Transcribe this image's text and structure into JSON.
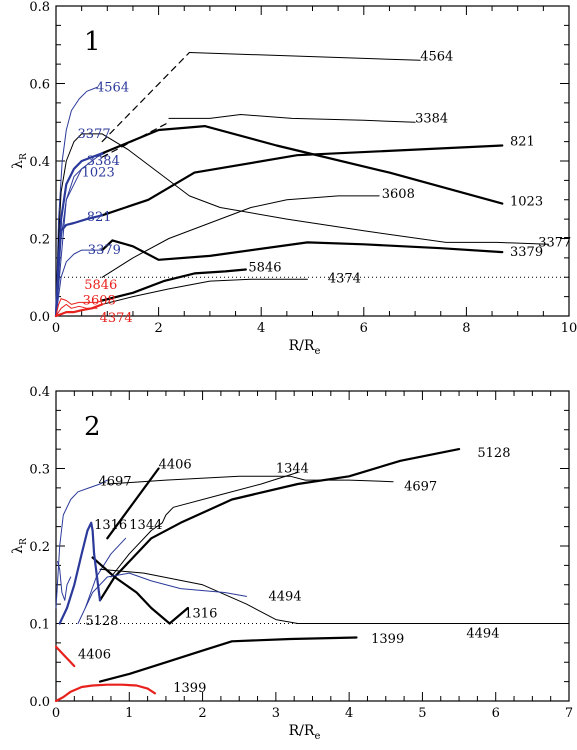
{
  "chart_data": [
    {
      "type": "line",
      "panel_label": "1",
      "xlabel": "R/R",
      "xlabel_sub": "e",
      "ylabel": "λ",
      "ylabel_sub": "R",
      "xlim": [
        0,
        10
      ],
      "ylim": [
        0,
        0.8
      ],
      "xticks": [
        0,
        2,
        4,
        6,
        8,
        10
      ],
      "xtick_labels": [
        "0",
        "2",
        "4",
        "6",
        "8",
        "10"
      ],
      "yticks": [
        0,
        0.2,
        0.4,
        0.6,
        0.8
      ],
      "ytick_labels": [
        "0.0",
        "0.2",
        "0.4",
        "0.6",
        "0.8"
      ],
      "reference_line": {
        "y": 0.1,
        "style": "dotted"
      },
      "colors": {
        "black": "#000000",
        "blue": "#2b3a9a",
        "red": "#e8211d"
      },
      "series": [
        {
          "name": "4564",
          "color": "black",
          "width": 1.2,
          "dash": "6,5",
          "x": [
            0.9,
            2.6
          ],
          "y": [
            0.45,
            0.68
          ]
        },
        {
          "name": "4564",
          "color": "black",
          "width": 1.0,
          "x": [
            2.6,
            7.1
          ],
          "y": [
            0.68,
            0.66
          ]
        },
        {
          "name": "4564",
          "color": "blue",
          "width": 1.0,
          "x": [
            0,
            0.05,
            0.12,
            0.2,
            0.3,
            0.45,
            0.6,
            0.8
          ],
          "y": [
            0,
            0.25,
            0.4,
            0.48,
            0.53,
            0.56,
            0.58,
            0.59
          ]
        },
        {
          "name": "3384",
          "color": "black",
          "width": 1.2,
          "dash": "6,5",
          "x": [
            0.9,
            2.2
          ],
          "y": [
            0.41,
            0.5
          ]
        },
        {
          "name": "3384",
          "color": "black",
          "width": 1.0,
          "x": [
            2.2,
            3.0,
            3.6,
            4.6,
            6.0,
            7.0
          ],
          "y": [
            0.51,
            0.51,
            0.52,
            0.51,
            0.505,
            0.5
          ]
        },
        {
          "name": "3384",
          "color": "blue",
          "width": 1.0,
          "x": [
            0,
            0.2,
            0.5,
            0.8,
            0.95
          ],
          "y": [
            0,
            0.3,
            0.38,
            0.41,
            0.42
          ]
        },
        {
          "name": "3377",
          "color": "black",
          "width": 1.0,
          "x": [
            0.9,
            1.4,
            2.0,
            2.6,
            3.2,
            4.5,
            6.0,
            7.6,
            8.6,
            9.6
          ],
          "y": [
            0.47,
            0.43,
            0.37,
            0.31,
            0.28,
            0.25,
            0.22,
            0.19,
            0.19,
            0.185
          ]
        },
        {
          "name": "3377",
          "color": "black",
          "width": 1.0,
          "x": [
            0,
            0.05,
            0.1,
            0.2,
            0.35,
            0.5,
            0.7,
            0.9
          ],
          "y": [
            0,
            0.2,
            0.32,
            0.4,
            0.45,
            0.47,
            0.47,
            0.47
          ]
        },
        {
          "name": "3377",
          "color": "blue",
          "width": 1.0,
          "x": [
            0,
            0.1,
            0.2,
            0.35,
            0.5
          ],
          "y": [
            0,
            0.2,
            0.3,
            0.36,
            0.38
          ]
        },
        {
          "name": "1023",
          "color": "black",
          "width": 2.2,
          "x": [
            0.9,
            2.0,
            2.9,
            4.3,
            6.5,
            8.7
          ],
          "y": [
            0.42,
            0.48,
            0.49,
            0.44,
            0.37,
            0.29
          ]
        },
        {
          "name": "1023",
          "color": "blue",
          "width": 2.2,
          "x": [
            0,
            0.1,
            0.2,
            0.35,
            0.5,
            0.7,
            0.9
          ],
          "y": [
            0,
            0.25,
            0.34,
            0.38,
            0.4,
            0.41,
            0.42
          ]
        },
        {
          "name": "821",
          "color": "black",
          "width": 2.2,
          "x": [
            0.9,
            1.8,
            2.7,
            4.7,
            8.7
          ],
          "y": [
            0.26,
            0.3,
            0.37,
            0.415,
            0.44
          ]
        },
        {
          "name": "821",
          "color": "blue",
          "width": 2.2,
          "x": [
            0,
            0.05,
            0.1,
            0.2,
            0.35,
            0.6,
            0.9
          ],
          "y": [
            0,
            0.15,
            0.22,
            0.235,
            0.24,
            0.25,
            0.26
          ]
        },
        {
          "name": "3608",
          "color": "black",
          "width": 1.0,
          "x": [
            0.9,
            1.5,
            2.2,
            3.0,
            3.8,
            4.5,
            5.5,
            6.3
          ],
          "y": [
            0.1,
            0.15,
            0.2,
            0.24,
            0.28,
            0.3,
            0.31,
            0.31
          ]
        },
        {
          "name": "3608",
          "color": "red",
          "width": 1.0,
          "x": [
            0,
            0.1,
            0.2,
            0.3,
            0.45,
            0.6,
            0.8
          ],
          "y": [
            0,
            0.02,
            0.03,
            0.02,
            0.025,
            0.02,
            0.02
          ]
        },
        {
          "name": "3379",
          "color": "black",
          "width": 2.2,
          "x": [
            0.9,
            1.1,
            1.5,
            2.0,
            3.0,
            4.9,
            6.0,
            7.5,
            8.7
          ],
          "y": [
            0.17,
            0.195,
            0.18,
            0.145,
            0.155,
            0.19,
            0.185,
            0.175,
            0.165
          ]
        },
        {
          "name": "3379",
          "color": "blue",
          "width": 1.0,
          "x": [
            0,
            0.1,
            0.2,
            0.35,
            0.5,
            0.7,
            0.9
          ],
          "y": [
            0,
            0.1,
            0.14,
            0.16,
            0.17,
            0.17,
            0.17
          ]
        },
        {
          "name": "5846",
          "color": "black",
          "width": 2.2,
          "x": [
            0.9,
            1.5,
            2.1,
            2.7,
            3.3,
            3.7
          ],
          "y": [
            0.04,
            0.06,
            0.09,
            0.11,
            0.115,
            0.12
          ]
        },
        {
          "name": "5846",
          "color": "red",
          "width": 1.0,
          "x": [
            0,
            0.05,
            0.1,
            0.2,
            0.3,
            0.45,
            0.6,
            0.8,
            0.9
          ],
          "y": [
            0,
            0.03,
            0.045,
            0.04,
            0.03,
            0.035,
            0.035,
            0.035,
            0.04
          ]
        },
        {
          "name": "4374",
          "color": "black",
          "width": 1.0,
          "x": [
            0.9,
            1.5,
            2.2,
            3.0,
            3.8,
            4.4,
            4.9
          ],
          "y": [
            0.03,
            0.05,
            0.07,
            0.09,
            0.095,
            0.095,
            0.095
          ]
        },
        {
          "name": "4374",
          "color": "red",
          "width": 2.2,
          "x": [
            0,
            0.1,
            0.2,
            0.35,
            0.5,
            0.7,
            0.9
          ],
          "y": [
            0,
            0.005,
            0.01,
            0.01,
            0.015,
            0.02,
            0.03
          ]
        }
      ],
      "labels": [
        {
          "text": "4564",
          "x": 7.1,
          "y": 0.67,
          "color": "black"
        },
        {
          "text": "4564",
          "x": 0.78,
          "y": 0.59,
          "color": "blue"
        },
        {
          "text": "3384",
          "x": 7.0,
          "y": 0.51,
          "color": "black"
        },
        {
          "text": "3377",
          "x": 0.42,
          "y": 0.47,
          "color": "blue"
        },
        {
          "text": "3384",
          "x": 0.6,
          "y": 0.4,
          "color": "blue"
        },
        {
          "text": "1023",
          "x": 0.5,
          "y": 0.37,
          "color": "blue"
        },
        {
          "text": "821",
          "x": 8.85,
          "y": 0.45,
          "color": "black"
        },
        {
          "text": "3608",
          "x": 6.35,
          "y": 0.315,
          "color": "black"
        },
        {
          "text": "1023",
          "x": 8.85,
          "y": 0.295,
          "color": "black"
        },
        {
          "text": "821",
          "x": 0.6,
          "y": 0.255,
          "color": "blue"
        },
        {
          "text": "3377",
          "x": 9.4,
          "y": 0.19,
          "color": "black"
        },
        {
          "text": "3379",
          "x": 0.62,
          "y": 0.17,
          "color": "blue"
        },
        {
          "text": "3379",
          "x": 8.85,
          "y": 0.165,
          "color": "black"
        },
        {
          "text": "5846",
          "x": 3.75,
          "y": 0.125,
          "color": "black"
        },
        {
          "text": "5846",
          "x": 0.55,
          "y": 0.08,
          "color": "red"
        },
        {
          "text": "4374",
          "x": 5.3,
          "y": 0.097,
          "color": "black"
        },
        {
          "text": "3608",
          "x": 0.52,
          "y": 0.04,
          "color": "red"
        },
        {
          "text": "4374",
          "x": 0.85,
          "y": -0.005,
          "color": "red"
        }
      ]
    },
    {
      "type": "line",
      "panel_label": "2",
      "xlabel": "R/R",
      "xlabel_sub": "e",
      "ylabel": "λ",
      "ylabel_sub": "R",
      "xlim": [
        0,
        7
      ],
      "ylim": [
        0,
        0.4
      ],
      "xticks": [
        0,
        1,
        2,
        3,
        4,
        5,
        6,
        7
      ],
      "xtick_labels": [
        "0",
        "1",
        "2",
        "3",
        "4",
        "5",
        "6",
        "7"
      ],
      "yticks": [
        0,
        0.1,
        0.2,
        0.3,
        0.4
      ],
      "ytick_labels": [
        "0.0",
        "0.1",
        "0.2",
        "0.3",
        "0.4"
      ],
      "reference_line": {
        "y": 0.1,
        "style": "dotted"
      },
      "colors": {
        "black": "#000000",
        "blue": "#2b3a9a",
        "red": "#e8211d"
      },
      "series": [
        {
          "name": "4697",
          "color": "black",
          "width": 1.0,
          "x": [
            0.7,
            1.5,
            2.5,
            3.2,
            3.4,
            4.0,
            4.6
          ],
          "y": [
            0.28,
            0.285,
            0.29,
            0.29,
            0.285,
            0.285,
            0.283
          ]
        },
        {
          "name": "4697",
          "color": "blue",
          "width": 1.0,
          "x": [
            0,
            0.05,
            0.1,
            0.2,
            0.3,
            0.45,
            0.6,
            0.7
          ],
          "y": [
            0.12,
            0.2,
            0.24,
            0.26,
            0.27,
            0.275,
            0.28,
            0.285
          ]
        },
        {
          "name": "1344",
          "color": "black",
          "width": 1.0,
          "x": [
            0.75,
            1.0,
            1.3,
            1.45,
            1.5,
            1.6,
            2.2,
            2.8,
            3.3
          ],
          "y": [
            0.16,
            0.19,
            0.22,
            0.23,
            0.24,
            0.25,
            0.265,
            0.28,
            0.295
          ]
        },
        {
          "name": "1344",
          "color": "blue",
          "width": 1.0,
          "x": [
            0.4,
            0.55,
            0.75,
            0.95
          ],
          "y": [
            0.12,
            0.16,
            0.19,
            0.21
          ]
        },
        {
          "name": "4406",
          "color": "black",
          "width": 2.2,
          "x": [
            0.7,
            1.4
          ],
          "y": [
            0.21,
            0.3
          ]
        },
        {
          "name": "5128",
          "color": "black",
          "width": 2.2,
          "x": [
            0.6,
            0.8,
            1.3,
            1.7,
            2.4,
            3.3,
            4.0,
            4.7,
            5.5
          ],
          "y": [
            0.13,
            0.16,
            0.21,
            0.23,
            0.26,
            0.28,
            0.29,
            0.31,
            0.325
          ]
        },
        {
          "name": "5128",
          "color": "blue",
          "width": 1.0,
          "x": [
            0.02,
            0.05,
            0.08,
            0.12,
            0.15,
            0.2
          ],
          "y": [
            0.18,
            0.17,
            0.14,
            0.13,
            0.15,
            0.16
          ]
        },
        {
          "name": "1316",
          "color": "black",
          "width": 2.2,
          "x": [
            0.5,
            0.8,
            1.1,
            1.3,
            1.55,
            1.8
          ],
          "y": [
            0.185,
            0.16,
            0.14,
            0.12,
            0.1,
            0.12
          ]
        },
        {
          "name": "1316",
          "color": "blue",
          "width": 2.2,
          "x": [
            0.05,
            0.15,
            0.25,
            0.35,
            0.43,
            0.48,
            0.5,
            0.52,
            0.56,
            0.6
          ],
          "y": [
            0.1,
            0.12,
            0.15,
            0.19,
            0.22,
            0.23,
            0.22,
            0.19,
            0.16,
            0.13
          ]
        },
        {
          "name": "4494",
          "color": "black",
          "width": 1.0,
          "x": [
            0.6,
            1.2,
            2.0,
            2.6,
            3.0,
            3.3,
            4.0,
            5.5,
            6.9
          ],
          "y": [
            0.17,
            0.165,
            0.15,
            0.125,
            0.105,
            0.1,
            0.1,
            0.1,
            0.1
          ]
        },
        {
          "name": "4494",
          "color": "blue",
          "width": 1.0,
          "x": [
            0.3,
            0.5,
            0.7,
            1.0,
            1.3,
            1.7,
            2.3,
            2.6
          ],
          "y": [
            0.1,
            0.14,
            0.16,
            0.165,
            0.155,
            0.145,
            0.14,
            0.135
          ]
        },
        {
          "name": "4406",
          "color": "red",
          "width": 2.2,
          "x": [
            0,
            0.05,
            0.1,
            0.15,
            0.2,
            0.25
          ],
          "y": [
            0.07,
            0.065,
            0.06,
            0.055,
            0.05,
            0.045
          ]
        },
        {
          "name": "1399",
          "color": "black",
          "width": 2.2,
          "x": [
            0.6,
            1.0,
            1.5,
            2.0,
            2.4,
            3.2,
            4.1
          ],
          "y": [
            0.025,
            0.035,
            0.05,
            0.065,
            0.077,
            0.08,
            0.082
          ]
        },
        {
          "name": "1399",
          "color": "red",
          "width": 2.2,
          "x": [
            0,
            0.1,
            0.2,
            0.35,
            0.5,
            0.7,
            0.9,
            1.1,
            1.25,
            1.35
          ],
          "y": [
            0,
            0.005,
            0.012,
            0.018,
            0.02,
            0.021,
            0.021,
            0.02,
            0.016,
            0.01
          ]
        }
      ],
      "labels": [
        {
          "text": "4406",
          "x": 1.4,
          "y": 0.305,
          "color": "black"
        },
        {
          "text": "1344",
          "x": 3.0,
          "y": 0.3,
          "color": "black"
        },
        {
          "text": "5128",
          "x": 5.75,
          "y": 0.32,
          "color": "black"
        },
        {
          "text": "4697",
          "x": 0.58,
          "y": 0.283,
          "color": "black"
        },
        {
          "text": "4697",
          "x": 4.75,
          "y": 0.277,
          "color": "black"
        },
        {
          "text": "1316",
          "x": 0.52,
          "y": 0.227,
          "color": "black"
        },
        {
          "text": "1344",
          "x": 1.0,
          "y": 0.227,
          "color": "black"
        },
        {
          "text": "4494",
          "x": 2.9,
          "y": 0.135,
          "color": "black"
        },
        {
          "text": "1316",
          "x": 1.75,
          "y": 0.113,
          "color": "black"
        },
        {
          "text": "5128",
          "x": 0.4,
          "y": 0.103,
          "color": "black"
        },
        {
          "text": "4494",
          "x": 5.6,
          "y": 0.087,
          "color": "black"
        },
        {
          "text": "1399",
          "x": 4.3,
          "y": 0.08,
          "color": "black"
        },
        {
          "text": "4406",
          "x": 0.3,
          "y": 0.06,
          "color": "black"
        },
        {
          "text": "1399",
          "x": 1.6,
          "y": 0.017,
          "color": "black"
        }
      ]
    }
  ]
}
